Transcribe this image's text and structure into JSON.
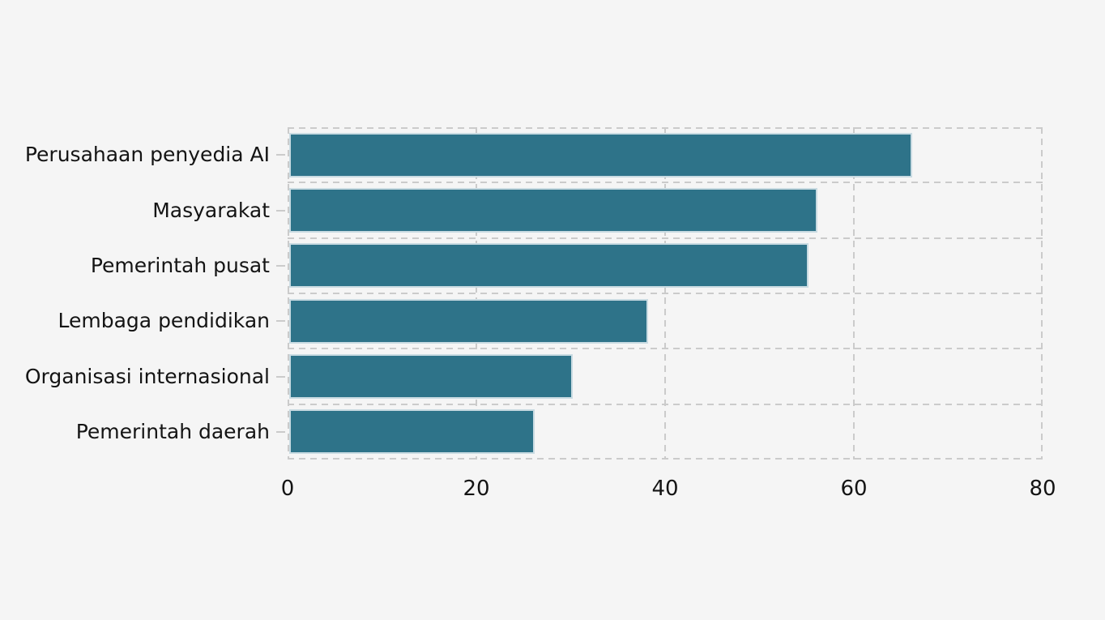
{
  "page": {
    "background": "#f5f5f5"
  },
  "chart_data": {
    "type": "bar",
    "orientation": "horizontal",
    "title": "",
    "xlabel": "",
    "ylabel": "",
    "categories": [
      "Perusahaan penyedia AI",
      "Masyarakat",
      "Pemerintah pusat",
      "Lembaga pendidikan",
      "Organisasi internasional",
      "Pemerintah daerah"
    ],
    "values": [
      66,
      56,
      55,
      38,
      30,
      26
    ],
    "xlim": [
      0,
      80
    ],
    "xticks": [
      0,
      20,
      40,
      60,
      80
    ],
    "grid": "dashed",
    "legend": "none",
    "bar_color": "#2e7389",
    "bar_edge_color": "#c9dbe2",
    "grid_color": "#cbcbcb",
    "text_color": "#141414",
    "background_color": "#f5f5f5"
  }
}
